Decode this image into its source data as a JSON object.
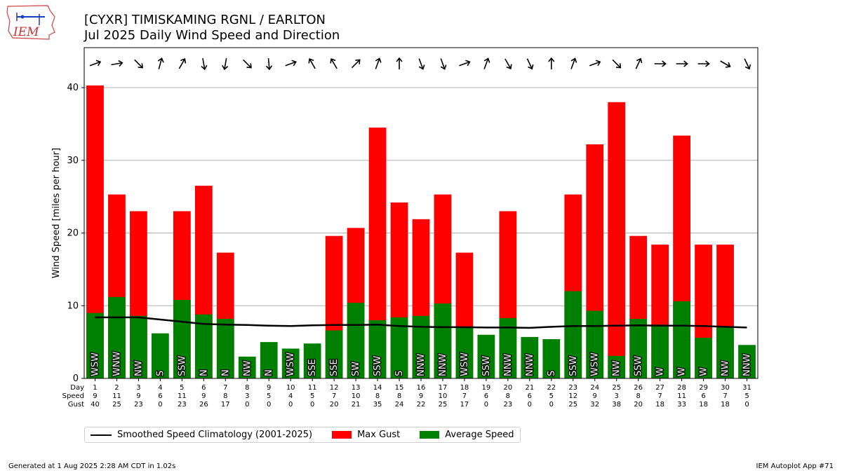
{
  "header": {
    "title_line1": "[CYXR] TIMISKAMING RGNL / EARLTON",
    "title_line2": "Jul 2025 Daily Wind Speed and Direction",
    "logo_text": "IEM"
  },
  "legend": {
    "climatology_label": "Smoothed Speed Climatology (2001-2025)",
    "gust_label": "Max Gust",
    "avg_label": "Average Speed"
  },
  "footer": {
    "generated": "Generated at 1 Aug 2025 2:28 AM CDT in 1.02s",
    "app": "IEM Autoplot App #71"
  },
  "colors": {
    "gust": "#ff0000",
    "avg": "#008000",
    "climatology": "#000000",
    "grid": "#b0b0b0"
  },
  "chart_data": {
    "type": "bar",
    "title": "[CYXR] TIMISKAMING RGNL / EARLTON\nJul 2025 Daily Wind Speed and Direction",
    "ylabel": "Wind Speed [miles per hour]",
    "ylim": [
      0,
      45.5
    ],
    "yticks": [
      0,
      10,
      20,
      30,
      40
    ],
    "grid": true,
    "legend_position": "bottom-left",
    "row_labels": [
      "Day",
      "Speed",
      "Gust"
    ],
    "days": [
      1,
      2,
      3,
      4,
      5,
      6,
      7,
      8,
      9,
      10,
      11,
      12,
      13,
      14,
      15,
      16,
      17,
      18,
      19,
      20,
      21,
      22,
      23,
      24,
      25,
      26,
      27,
      28,
      29,
      30,
      31
    ],
    "avg_speed": [
      9.0,
      11.2,
      8.6,
      6.2,
      10.8,
      8.8,
      8.2,
      3.0,
      5.0,
      4.1,
      4.8,
      6.6,
      10.4,
      8.0,
      8.4,
      8.6,
      10.3,
      7.0,
      6.0,
      8.3,
      5.7,
      5.4,
      12.0,
      9.3,
      3.1,
      8.2,
      7.4,
      10.6,
      5.6,
      7.0,
      4.6
    ],
    "speed_labels": [
      "9",
      "11",
      "9",
      "6",
      "11",
      "9",
      "8",
      "3",
      "5",
      "4",
      "5",
      "7",
      "10",
      "8",
      "8",
      "9",
      "10",
      "7",
      "6",
      "8",
      "6",
      "5",
      "12",
      "9",
      "3",
      "8",
      "7",
      "11",
      "6",
      "7",
      "5"
    ],
    "max_gust": [
      40.3,
      25.3,
      23.0,
      0,
      23.0,
      26.5,
      17.3,
      0,
      0,
      0,
      0,
      19.6,
      20.7,
      34.5,
      24.2,
      21.9,
      25.3,
      17.3,
      0,
      23.0,
      0,
      0,
      25.3,
      32.2,
      38.0,
      19.6,
      18.4,
      33.4,
      18.4,
      18.4,
      0
    ],
    "gust_labels": [
      "40",
      "25",
      "23",
      "0",
      "23",
      "26",
      "17",
      "0",
      "0",
      "0",
      "0",
      "20",
      "21",
      "35",
      "24",
      "22",
      "25",
      "17",
      "0",
      "23",
      "0",
      "0",
      "25",
      "32",
      "38",
      "20",
      "18",
      "33",
      "18",
      "18",
      "0"
    ],
    "direction_labels": [
      "WSW",
      "WNW",
      "NW",
      "S",
      "SSW",
      "N",
      "N",
      "NW",
      "N",
      "WSW",
      "SSE",
      "SSE",
      "SW",
      "SSW",
      "S",
      "NNW",
      "NNW",
      "WSW",
      "SSW",
      "NNW",
      "NNW",
      "S",
      "SSW",
      "WSW",
      "NW",
      "SSW",
      "W",
      "W",
      "W",
      "NW",
      "NNW"
    ],
    "arrow_bearing_deg": [
      70,
      80,
      135,
      15,
      30,
      170,
      190,
      135,
      175,
      70,
      330,
      330,
      45,
      20,
      0,
      160,
      160,
      70,
      20,
      150,
      155,
      0,
      20,
      70,
      135,
      25,
      90,
      90,
      90,
      120,
      155
    ],
    "climatology": [
      8.4,
      8.4,
      8.4,
      8.1,
      7.8,
      7.5,
      7.4,
      7.35,
      7.25,
      7.2,
      7.3,
      7.35,
      7.35,
      7.4,
      7.2,
      7.1,
      7.05,
      7.05,
      7.0,
      7.0,
      6.95,
      7.1,
      7.2,
      7.2,
      7.25,
      7.3,
      7.25,
      7.25,
      7.2,
      7.1,
      7.0
    ]
  }
}
